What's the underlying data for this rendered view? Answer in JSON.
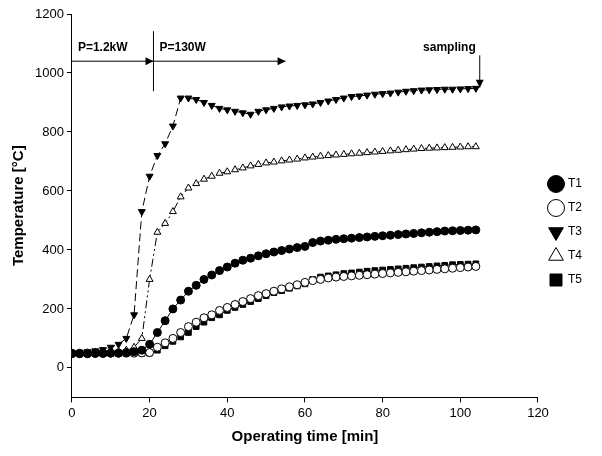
{
  "chart_data": {
    "type": "line",
    "x_label": "Operating time [min]",
    "y_label": "Temperature [°C]",
    "xlim": [
      0,
      120
    ],
    "xticks": [
      0,
      20,
      40,
      60,
      80,
      100,
      120
    ],
    "ylim": [
      -100,
      1200
    ],
    "yticks": [
      0,
      200,
      400,
      600,
      800,
      1000,
      1200
    ],
    "grid": false,
    "legend": "right",
    "x": [
      0,
      2,
      4,
      6,
      8,
      10,
      12,
      14,
      16,
      18,
      20,
      22,
      24,
      26,
      28,
      30,
      32,
      34,
      36,
      38,
      40,
      42,
      44,
      46,
      48,
      50,
      52,
      54,
      56,
      58,
      60,
      62,
      64,
      66,
      68,
      70,
      72,
      74,
      76,
      78,
      80,
      82,
      84,
      86,
      88,
      90,
      92,
      94,
      96,
      98,
      100,
      102,
      104
    ],
    "series": [
      {
        "name": "T1",
        "color": "#000000",
        "marker": "circle",
        "line_style": "solid",
        "values": [
          48,
          48,
          48,
          49,
          49,
          50,
          50,
          52,
          55,
          60,
          80,
          120,
          160,
          200,
          230,
          260,
          280,
          300,
          315,
          330,
          342,
          355,
          365,
          372,
          380,
          387,
          393,
          398,
          403,
          408,
          412,
          425,
          430,
          433,
          436,
          438,
          440,
          442,
          444,
          446,
          448,
          450,
          452,
          454,
          456,
          458,
          460,
          462,
          464,
          465,
          466,
          467,
          468
        ]
      },
      {
        "name": "T2",
        "color": "#000000",
        "marker": "circle-open",
        "line_style": "dotted",
        "values": [
          50,
          50,
          50,
          50,
          50,
          50,
          50,
          50,
          50,
          51,
          52,
          70,
          85,
          100,
          120,
          140,
          155,
          170,
          180,
          195,
          205,
          215,
          225,
          235,
          245,
          252,
          260,
          268,
          275,
          282,
          290,
          296,
          300,
          305,
          308,
          310,
          312,
          314,
          316,
          318,
          320,
          322,
          324,
          326,
          328,
          330,
          332,
          334,
          336,
          338,
          340,
          342,
          344
        ]
      },
      {
        "name": "T3",
        "color": "#000000",
        "marker": "triangle-down",
        "line_style": "dashed",
        "values": [
          50,
          52,
          55,
          58,
          62,
          70,
          80,
          100,
          180,
          530,
          650,
          720,
          760,
          820,
          915,
          915,
          910,
          900,
          890,
          880,
          875,
          870,
          865,
          860,
          870,
          875,
          880,
          885,
          888,
          890,
          892,
          895,
          900,
          905,
          910,
          915,
          920,
          922,
          925,
          928,
          930,
          932,
          935,
          938,
          940,
          942,
          943,
          944,
          945,
          945,
          946,
          947,
          948
        ]
      },
      {
        "name": "T4",
        "color": "#000000",
        "marker": "triangle-open",
        "line_style": "dashdotdot",
        "values": [
          50,
          50,
          51,
          52,
          53,
          54,
          56,
          60,
          70,
          100,
          300,
          460,
          490,
          530,
          580,
          610,
          625,
          640,
          650,
          660,
          665,
          672,
          678,
          685,
          690,
          695,
          698,
          702,
          705,
          708,
          712,
          715,
          718,
          720,
          722,
          724,
          726,
          728,
          730,
          732,
          734,
          736,
          738,
          740,
          742,
          744,
          745,
          746,
          747,
          748,
          749,
          750,
          750
        ]
      },
      {
        "name": "T5",
        "color": "#000000",
        "marker": "square",
        "line_style": "longdash",
        "values": [
          50,
          50,
          50,
          50,
          50,
          50,
          50,
          50,
          50,
          50,
          50,
          60,
          75,
          90,
          105,
          120,
          140,
          155,
          170,
          180,
          195,
          205,
          215,
          225,
          235,
          245,
          255,
          262,
          270,
          278,
          285,
          300,
          308,
          312,
          316,
          320,
          322,
          325,
          328,
          330,
          332,
          334,
          336,
          338,
          340,
          342,
          344,
          346,
          348,
          350,
          351,
          352,
          353
        ]
      }
    ],
    "annotations": [
      {
        "text": "P=1.2kW",
        "x": [
          0,
          21
        ],
        "y": 1040
      },
      {
        "text": "P=130W",
        "x": [
          21,
          55
        ],
        "y": 1040
      },
      {
        "text": "sampling",
        "x": 105,
        "y": [
          1060,
          950
        ]
      }
    ]
  }
}
